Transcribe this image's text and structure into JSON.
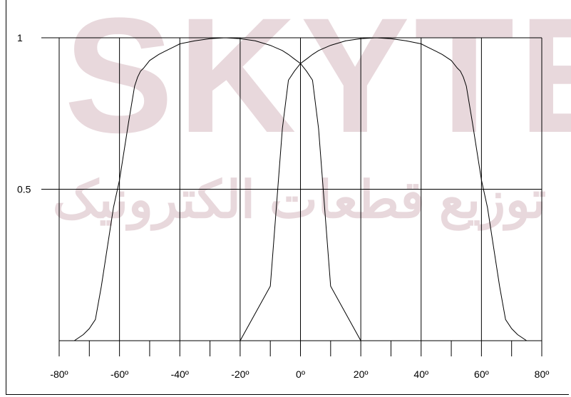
{
  "watermark": {
    "brand": "SKYTEC",
    "subtitle": "توزیع قطعات الکترونیک",
    "color": "#e8d8dc"
  },
  "chart_data": {
    "type": "line",
    "title": "",
    "xlabel": "",
    "ylabel": "",
    "xlim": [
      -80,
      80
    ],
    "ylim": [
      0,
      1
    ],
    "x_ticks": [
      -80,
      -60,
      -40,
      -20,
      0,
      20,
      40,
      60,
      80
    ],
    "x_tick_labels": [
      "-80º",
      "-60º",
      "-40º",
      "-20º",
      "0º",
      "20º",
      "40º",
      "60º",
      "80º"
    ],
    "x_minor_ticks": [
      -70,
      -50,
      -30,
      -10,
      10,
      30,
      50,
      70
    ],
    "y_ticks": [
      0.5,
      1
    ],
    "y_tick_labels": [
      "0.5",
      "1"
    ],
    "grid": true,
    "line_color": "#000000",
    "series": [
      {
        "x": [
          -80,
          -75,
          -72,
          -70,
          -68,
          -66,
          -62,
          -60,
          -57,
          -55,
          -54,
          -53,
          -52,
          -50,
          -47,
          -45,
          -42,
          -40,
          -35,
          -30,
          -25,
          -20,
          -15,
          -10,
          -6,
          -4,
          -2,
          0,
          2,
          4,
          6,
          10,
          20
        ],
        "y": [
          0,
          0,
          0.02,
          0.04,
          0.07,
          0.18,
          0.44,
          0.53,
          0.72,
          0.84,
          0.87,
          0.89,
          0.9,
          0.925,
          0.945,
          0.955,
          0.97,
          0.98,
          0.99,
          0.997,
          1,
          0.997,
          0.99,
          0.975,
          0.958,
          0.945,
          0.93,
          0.915,
          0.89,
          0.86,
          0.7,
          0.18,
          0
        ]
      },
      {
        "x": [
          -20,
          -10,
          -6,
          -4,
          -2,
          0,
          2,
          4,
          6,
          10,
          15,
          20,
          25,
          30,
          35,
          40,
          42,
          45,
          47,
          50,
          52,
          53,
          54,
          55,
          57,
          60,
          62,
          66,
          68,
          70,
          72,
          75,
          80
        ],
        "y": [
          0,
          0.18,
          0.7,
          0.86,
          0.89,
          0.915,
          0.93,
          0.945,
          0.958,
          0.975,
          0.99,
          0.997,
          1,
          0.997,
          0.99,
          0.98,
          0.97,
          0.955,
          0.945,
          0.925,
          0.9,
          0.89,
          0.87,
          0.84,
          0.72,
          0.53,
          0.44,
          0.18,
          0.07,
          0.04,
          0.02,
          0,
          0
        ]
      }
    ]
  }
}
